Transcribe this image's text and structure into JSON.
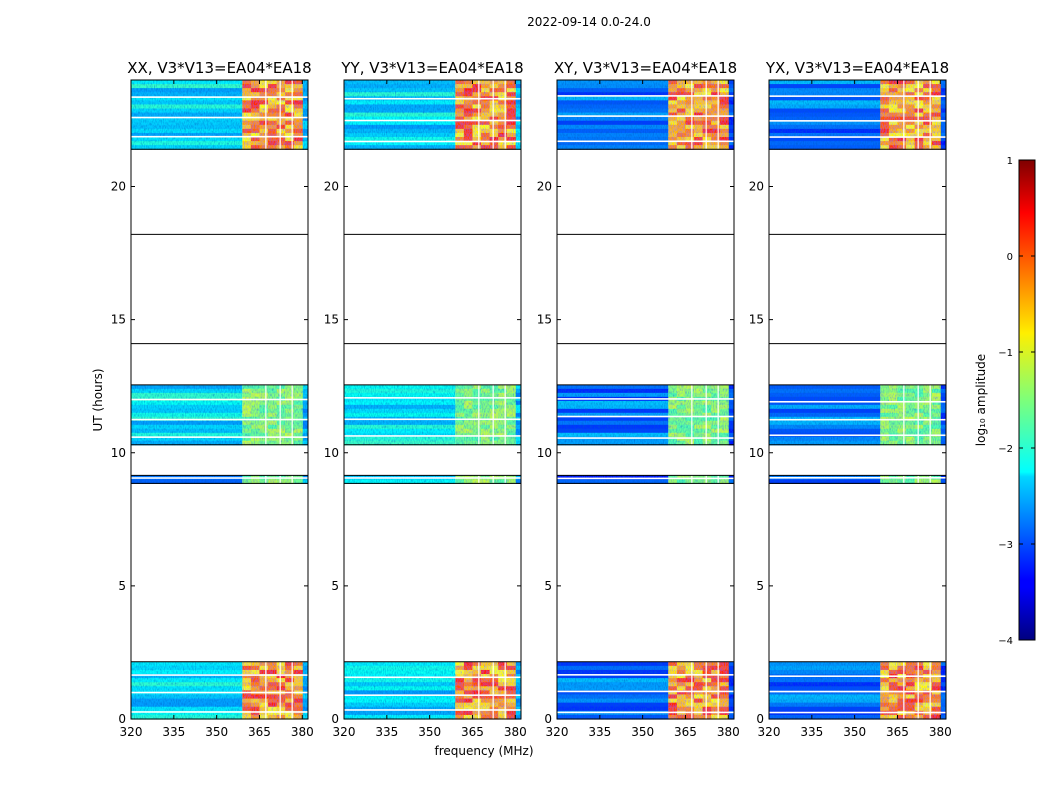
{
  "chart_data": {
    "type": "heatmap",
    "suptitle": "2022-09-14 0.0-24.0",
    "xlabel": "frequency (MHz)",
    "ylabel": "UT (hours)",
    "xlim": [
      320,
      382
    ],
    "ylim": [
      0,
      24
    ],
    "xticks": [
      320,
      335,
      350,
      365,
      380
    ],
    "yticks": [
      0,
      5,
      10,
      15,
      20
    ],
    "panels": [
      {
        "title": "XX, V3*V13=EA04*EA18",
        "pol": "XX"
      },
      {
        "title": "YY, V3*V13=EA04*EA18",
        "pol": "YY"
      },
      {
        "title": "XY, V3*V13=EA04*EA18",
        "pol": "XY"
      },
      {
        "title": "YX, V3*V13=EA04*EA18",
        "pol": "YX"
      }
    ],
    "observed_blocks_ut_hours": [
      [
        0.0,
        2.15
      ],
      [
        8.85,
        9.15
      ],
      [
        10.3,
        12.55
      ],
      [
        21.4,
        24.0
      ]
    ],
    "empty_block_dividers_ut_hours": [
      14.1,
      18.2
    ],
    "rfi_band_mhz": [
      359,
      380
    ],
    "colorbar": {
      "label": "log₁₀ amplitude",
      "min": -4,
      "max": 1,
      "ticks": [
        1,
        0,
        -1,
        -2,
        -3,
        -4
      ],
      "tick_labels": [
        "1",
        "0",
        "−1",
        "−2",
        "−3",
        "−4"
      ],
      "colormap": "jet"
    }
  }
}
